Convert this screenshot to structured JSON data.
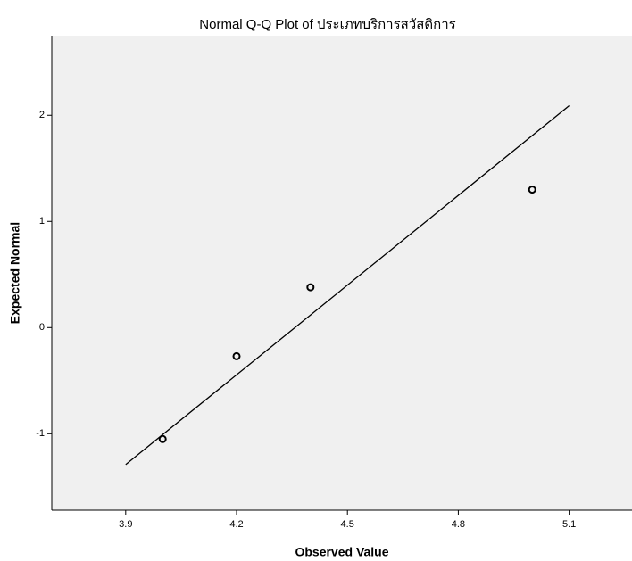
{
  "chart_data": {
    "type": "scatter",
    "title": "Normal Q-Q Plot of ประเภทบริการสวัสดิการ",
    "x_label": "Observed Value",
    "y_label": "Expected Normal",
    "x": [
      4.0,
      4.2,
      4.4,
      5.0
    ],
    "values": [
      -1.05,
      -0.27,
      0.38,
      1.3
    ],
    "color": "#000000",
    "reference_line": {
      "x": [
        3.9,
        5.1
      ],
      "y": [
        -1.29,
        2.09
      ],
      "color": "#000000"
    },
    "xlim": [
      3.7,
      5.27
    ],
    "ylim": [
      -1.72,
      2.75
    ],
    "xticks": [
      3.9,
      4.2,
      4.5,
      4.8,
      5.1
    ],
    "yticks": [
      -1,
      0,
      1,
      2
    ],
    "background": "#f0f0f0"
  }
}
